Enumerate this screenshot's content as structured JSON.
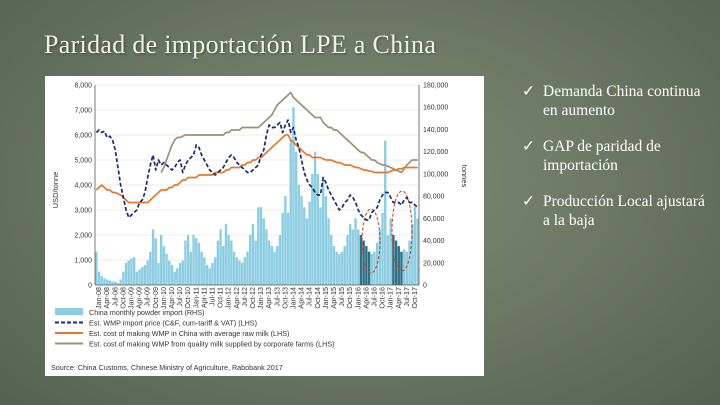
{
  "slide": {
    "title": "Paridad de importación LPE a China"
  },
  "bullets": [
    {
      "icon": "check-mark-icon",
      "text": "Demanda China continua en aumento"
    },
    {
      "icon": "check-mark-icon",
      "text": "GAP de paridad de importación"
    },
    {
      "icon": "check-mark-icon",
      "text": "Producción Local ajustará  a la baja"
    }
  ],
  "chart_data": {
    "type": "bar+line",
    "title": "",
    "ylabel_left": "USD/tonne",
    "ylabel_right": "tonnes",
    "y_left_ticks": [
      "0",
      "1,000",
      "2,000",
      "3,000",
      "4,000",
      "5,000",
      "6,000",
      "7,000",
      "8,000"
    ],
    "y_right_ticks": [
      "0",
      "20,000",
      "40,000",
      "60,000",
      "80,000",
      "100,000",
      "120,000",
      "140,000",
      "160,000",
      "180,000"
    ],
    "ylim_left": [
      0,
      8000
    ],
    "ylim_right": [
      0,
      180000
    ],
    "x_tick_labels": [
      "Jan-08",
      "Apr-08",
      "Jul-08",
      "Oct-08",
      "Jan-09",
      "Apr-09",
      "Jul-09",
      "Oct-09",
      "Jan-10",
      "Apr-10",
      "Jul-10",
      "Oct-10",
      "Jan-11",
      "Apr-11",
      "Jul-11",
      "Oct-11",
      "Jan-12",
      "Apr-12",
      "Jul-12",
      "Oct-12",
      "Jan-13",
      "Apr-13",
      "Jul-13",
      "Oct-13",
      "Jan-14",
      "Apr-14",
      "Jul-14",
      "Oct-14",
      "Jan-15",
      "Apr-15",
      "Jul-15",
      "Oct-15",
      "Jan-16",
      "Apr-16",
      "Jul-16",
      "Oct-16",
      "Jan-17",
      "Apr-17",
      "Jul-17",
      "Oct-17"
    ],
    "x_ticks_printed": 40,
    "months": 120,
    "legend": [
      {
        "name": "China monthly powder import (RHS)",
        "color": "#8ccde2",
        "style": "bar"
      },
      {
        "name": "Est. WMP import price (C&F, cum-tariff & VAT) (LHS)",
        "color": "#1b2a6b",
        "style": "dashed"
      },
      {
        "name": "Est. cost of making WMP in China with average raw milk (LHS)",
        "color": "#e8772e",
        "style": "solid"
      },
      {
        "name": "Est. cost of making WMP from quality milk supplied by corporate farms (LHS)",
        "color": "#9d9074",
        "style": "solid"
      }
    ],
    "highlight_color": "#2c6f86",
    "highlight_months": [
      98,
      99,
      100,
      101,
      110,
      111,
      112,
      113
    ],
    "series": [
      {
        "name": "China monthly powder import (RHS)",
        "axis": "right",
        "values": [
          30000,
          12000,
          8000,
          6000,
          5000,
          4000,
          3000,
          3000,
          2000,
          5000,
          12000,
          20000,
          22000,
          24000,
          25000,
          12000,
          14000,
          16000,
          18000,
          22000,
          30000,
          50000,
          42000,
          20000,
          45000,
          35000,
          28000,
          22000,
          18000,
          12000,
          15000,
          20000,
          22000,
          40000,
          45000,
          30000,
          45000,
          42000,
          38000,
          30000,
          25000,
          18000,
          15000,
          20000,
          25000,
          40000,
          50000,
          35000,
          55000,
          45000,
          40000,
          30000,
          25000,
          22000,
          20000,
          25000,
          30000,
          45000,
          55000,
          40000,
          70000,
          70000,
          60000,
          50000,
          40000,
          35000,
          30000,
          35000,
          45000,
          65000,
          80000,
          65000,
          130000,
          160000,
          120000,
          90000,
          80000,
          70000,
          60000,
          75000,
          100000,
          120000,
          100000,
          70000,
          95000,
          80000,
          60000,
          45000,
          35000,
          30000,
          28000,
          30000,
          35000,
          45000,
          55000,
          50000,
          60000,
          50000,
          45000,
          40000,
          35000,
          30000,
          28000,
          30000,
          38000,
          50000,
          65000,
          130000,
          45000,
          60000,
          45000,
          40000,
          35000,
          30000,
          32000,
          30000,
          40000,
          55000,
          70000,
          60000
        ]
      },
      {
        "name": "Est. WMP import price (C&F, cum-tariff & VAT) (LHS)",
        "axis": "left",
        "values": [
          6100,
          6200,
          6100,
          6150,
          5900,
          5950,
          5800,
          5400,
          4700,
          4000,
          3500,
          3000,
          2700,
          2800,
          2900,
          3000,
          3300,
          3400,
          3700,
          4300,
          4800,
          5200,
          4600,
          5000,
          4800,
          4900,
          4800,
          4700,
          4600,
          4700,
          4900,
          5000,
          4500,
          4800,
          5000,
          5100,
          5200,
          5600,
          5500,
          5200,
          5000,
          4800,
          4600,
          4500,
          4400,
          4500,
          4600,
          4700,
          4900,
          5100,
          5200,
          5100,
          4900,
          4800,
          4700,
          4600,
          4500,
          4500,
          4600,
          4700,
          4800,
          5200,
          5400,
          6000,
          6400,
          6300,
          6300,
          6400,
          6500,
          6100,
          6400,
          6600,
          6100,
          6300,
          5800,
          5500,
          5000,
          4500,
          4200,
          4000,
          3900,
          3700,
          3600,
          3600,
          4300,
          4100,
          3800,
          3600,
          3400,
          3200,
          3000,
          3100,
          3300,
          3400,
          3600,
          3500,
          3300,
          3000,
          2800,
          2700,
          2600,
          2600,
          2900,
          3000,
          3100,
          3400,
          3600,
          3700,
          3700,
          3500,
          3300,
          3300,
          3300,
          3200,
          3400,
          3500,
          3300,
          3300,
          3200,
          3100
        ]
      },
      {
        "name": "Est. cost of making WMP in China with average raw milk (LHS)",
        "axis": "left",
        "values": [
          3800,
          3900,
          4000,
          3900,
          3800,
          3800,
          3700,
          3700,
          3650,
          3600,
          3500,
          3400,
          3300,
          3300,
          3300,
          3300,
          3300,
          3300,
          3300,
          3300,
          3400,
          3500,
          3600,
          3700,
          3800,
          3800,
          3800,
          3900,
          3900,
          4000,
          4000,
          4100,
          4200,
          4200,
          4300,
          4300,
          4300,
          4300,
          4400,
          4400,
          4400,
          4400,
          4400,
          4400,
          4500,
          4500,
          4500,
          4500,
          4600,
          4600,
          4700,
          4700,
          4700,
          4700,
          4800,
          4800,
          4900,
          4900,
          5000,
          5000,
          5100,
          5100,
          5200,
          5300,
          5400,
          5500,
          5600,
          5700,
          5800,
          5900,
          6000,
          6000,
          5800,
          5700,
          5600,
          5500,
          5400,
          5300,
          5200,
          5200,
          5100,
          5100,
          5100,
          5100,
          5050,
          5000,
          5000,
          5000,
          4950,
          4900,
          4900,
          4850,
          4800,
          4800,
          4800,
          4750,
          4700,
          4700,
          4650,
          4600,
          4600,
          4550,
          4550,
          4500,
          4500,
          4500,
          4500,
          4500,
          4500,
          4550,
          4600,
          4600,
          4650,
          4650,
          4700,
          4700,
          4700,
          4700,
          4700,
          4700
        ]
      },
      {
        "name": "Est. cost of making WMP from quality milk supplied by corporate farms (LHS)",
        "axis": "left",
        "values": [
          null,
          null,
          null,
          null,
          null,
          null,
          null,
          null,
          null,
          null,
          null,
          null,
          null,
          null,
          null,
          null,
          null,
          null,
          null,
          null,
          null,
          null,
          null,
          null,
          4500,
          4700,
          5000,
          5300,
          5600,
          5800,
          5900,
          5900,
          5950,
          6000,
          6000,
          6000,
          6000,
          6000,
          6000,
          6000,
          6000,
          6000,
          6000,
          6000,
          6000,
          6000,
          6000,
          6000,
          6100,
          6100,
          6200,
          6200,
          6200,
          6200,
          6300,
          6300,
          6300,
          6300,
          6300,
          6300,
          6300,
          6400,
          6500,
          6600,
          6700,
          6800,
          7000,
          7200,
          7300,
          7400,
          7500,
          7600,
          7700,
          7500,
          7400,
          7300,
          7200,
          7100,
          7000,
          6900,
          6800,
          6700,
          6700,
          6700,
          6500,
          6400,
          6300,
          6300,
          6200,
          6200,
          6100,
          6000,
          5900,
          5800,
          5700,
          5600,
          5500,
          5400,
          5300,
          5300,
          5200,
          5100,
          5000,
          5000,
          4900,
          4850,
          4800,
          4800,
          4750,
          4700,
          4650,
          4600,
          4550,
          4500,
          4650,
          4800,
          4900,
          5000,
          5000,
          5000
        ]
      }
    ],
    "source": "Source: China Customs, Chinese Ministry of Agriculture, Rabobank 2017"
  }
}
